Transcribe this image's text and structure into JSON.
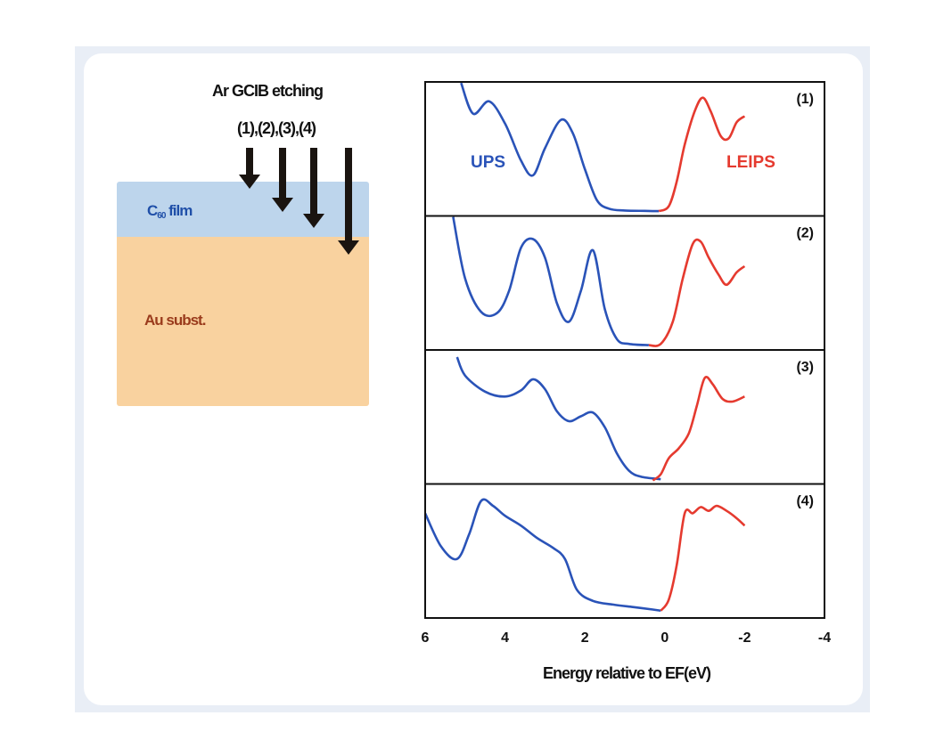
{
  "schematic": {
    "etching_title": "Ar GCIB etching",
    "etching_steps": "(1),(2),(3),(4)",
    "film_label_main": "C",
    "film_label_sub": "60",
    "film_label_rest": " film",
    "substrate_label": "Au subst.",
    "colors": {
      "film": "#bdd5ec",
      "substrate": "#f9d29f",
      "film_text": "#1f4fa8",
      "substrate_text": "#9a3b1c",
      "arrow": "#1a1410"
    }
  },
  "chart_data": {
    "type": "line",
    "xlabel": "Energy relative to EF(eV)",
    "xlim": [
      6,
      -4
    ],
    "x_ticks": [
      "6",
      "4",
      "2",
      "0",
      "-2",
      "-4"
    ],
    "series_labels": {
      "ups": "UPS",
      "leips": "LEIPS"
    },
    "colors": {
      "ups": "#2a53b8",
      "leips": "#e53a2f"
    },
    "panels": [
      {
        "label": "(1)",
        "ups": [
          [
            5.1,
            1.05
          ],
          [
            4.8,
            0.8
          ],
          [
            4.4,
            0.9
          ],
          [
            4.0,
            0.72
          ],
          [
            3.6,
            0.42
          ],
          [
            3.3,
            0.3
          ],
          [
            3.0,
            0.52
          ],
          [
            2.6,
            0.75
          ],
          [
            2.3,
            0.64
          ],
          [
            2.0,
            0.35
          ],
          [
            1.7,
            0.1
          ],
          [
            1.4,
            0.03
          ],
          [
            1.0,
            0.015
          ],
          [
            0.5,
            0.012
          ],
          [
            0.15,
            0.01
          ]
        ],
        "leips": [
          [
            0.15,
            0.01
          ],
          [
            -0.1,
            0.05
          ],
          [
            -0.3,
            0.25
          ],
          [
            -0.5,
            0.55
          ],
          [
            -0.75,
            0.82
          ],
          [
            -0.95,
            0.93
          ],
          [
            -1.15,
            0.82
          ],
          [
            -1.4,
            0.62
          ],
          [
            -1.6,
            0.6
          ],
          [
            -1.8,
            0.73
          ],
          [
            -2.0,
            0.78
          ]
        ]
      },
      {
        "label": "(2)",
        "ups": [
          [
            5.3,
            1.05
          ],
          [
            5.0,
            0.55
          ],
          [
            4.6,
            0.28
          ],
          [
            4.2,
            0.27
          ],
          [
            3.9,
            0.45
          ],
          [
            3.6,
            0.8
          ],
          [
            3.3,
            0.87
          ],
          [
            3.0,
            0.72
          ],
          [
            2.7,
            0.35
          ],
          [
            2.4,
            0.2
          ],
          [
            2.1,
            0.45
          ],
          [
            1.8,
            0.78
          ],
          [
            1.5,
            0.3
          ],
          [
            1.2,
            0.06
          ],
          [
            0.9,
            0.02
          ],
          [
            0.4,
            0.01
          ]
        ],
        "leips": [
          [
            0.4,
            0.01
          ],
          [
            0.1,
            0.02
          ],
          [
            -0.2,
            0.2
          ],
          [
            -0.45,
            0.55
          ],
          [
            -0.7,
            0.83
          ],
          [
            -0.9,
            0.85
          ],
          [
            -1.1,
            0.72
          ],
          [
            -1.35,
            0.58
          ],
          [
            -1.55,
            0.5
          ],
          [
            -1.8,
            0.6
          ],
          [
            -2.0,
            0.65
          ]
        ]
      },
      {
        "label": "(3)",
        "ups": [
          [
            5.2,
            1.0
          ],
          [
            5.0,
            0.85
          ],
          [
            4.5,
            0.72
          ],
          [
            4.0,
            0.68
          ],
          [
            3.6,
            0.73
          ],
          [
            3.3,
            0.82
          ],
          [
            3.0,
            0.74
          ],
          [
            2.7,
            0.56
          ],
          [
            2.4,
            0.48
          ],
          [
            2.1,
            0.52
          ],
          [
            1.8,
            0.55
          ],
          [
            1.5,
            0.43
          ],
          [
            1.2,
            0.22
          ],
          [
            0.9,
            0.08
          ],
          [
            0.6,
            0.03
          ],
          [
            0.1,
            0.01
          ]
        ],
        "leips": [
          [
            0.3,
            0.0
          ],
          [
            0.1,
            0.05
          ],
          [
            -0.1,
            0.18
          ],
          [
            -0.35,
            0.26
          ],
          [
            -0.6,
            0.38
          ],
          [
            -0.8,
            0.6
          ],
          [
            -1.0,
            0.83
          ],
          [
            -1.2,
            0.78
          ],
          [
            -1.45,
            0.66
          ],
          [
            -1.7,
            0.64
          ],
          [
            -2.0,
            0.68
          ]
        ]
      },
      {
        "label": "(4)",
        "ups": [
          [
            6.0,
            0.82
          ],
          [
            5.6,
            0.55
          ],
          [
            5.2,
            0.45
          ],
          [
            4.9,
            0.65
          ],
          [
            4.6,
            0.92
          ],
          [
            4.3,
            0.88
          ],
          [
            4.0,
            0.8
          ],
          [
            3.6,
            0.72
          ],
          [
            3.2,
            0.62
          ],
          [
            2.8,
            0.54
          ],
          [
            2.5,
            0.45
          ],
          [
            2.2,
            0.2
          ],
          [
            1.8,
            0.11
          ],
          [
            1.3,
            0.08
          ],
          [
            0.8,
            0.06
          ],
          [
            0.3,
            0.04
          ],
          [
            0.1,
            0.03
          ]
        ],
        "leips": [
          [
            0.1,
            0.03
          ],
          [
            -0.1,
            0.12
          ],
          [
            -0.3,
            0.4
          ],
          [
            -0.5,
            0.82
          ],
          [
            -0.7,
            0.82
          ],
          [
            -0.9,
            0.87
          ],
          [
            -1.1,
            0.84
          ],
          [
            -1.3,
            0.88
          ],
          [
            -1.55,
            0.84
          ],
          [
            -1.8,
            0.78
          ],
          [
            -2.0,
            0.72
          ]
        ]
      }
    ]
  }
}
